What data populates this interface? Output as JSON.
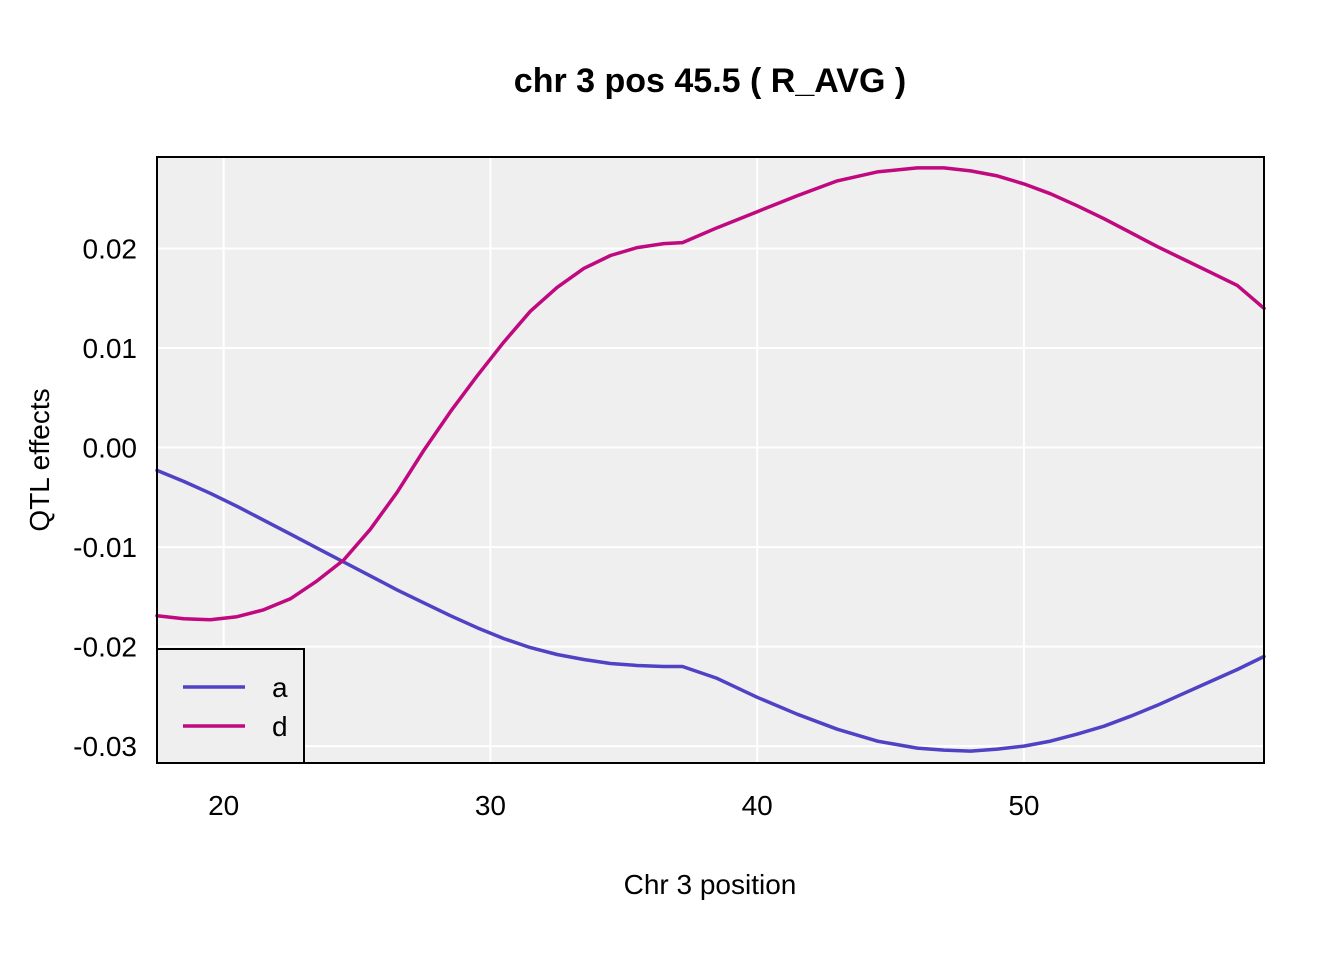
{
  "chart_data": {
    "type": "line",
    "title": "chr 3 pos 45.5 ( R_AVG )",
    "xlabel": "Chr 3 position",
    "ylabel": "QTL effects",
    "xlim": [
      17.5,
      59.0
    ],
    "ylim": [
      -0.0317,
      0.0292
    ],
    "x_ticks": [
      20,
      30,
      40,
      50
    ],
    "x_tick_labels": [
      "20",
      "30",
      "40",
      "50"
    ],
    "y_ticks": [
      -0.03,
      -0.02,
      -0.01,
      0.0,
      0.01,
      0.02
    ],
    "y_tick_labels": [
      "-0.03",
      "-0.02",
      "-0.01",
      "0.00",
      "0.01",
      "0.02"
    ],
    "grid": true,
    "background": "#efefef",
    "legend_position": "bottom-left",
    "series": [
      {
        "name": "a",
        "color": "#4f42c5",
        "x": [
          17.5,
          18.5,
          19.5,
          20.5,
          21.5,
          22.5,
          23.5,
          24.5,
          25.5,
          26.5,
          27.5,
          28.5,
          29.5,
          30.5,
          31.5,
          32.5,
          33.5,
          34.5,
          35.5,
          36.5,
          37.2,
          38.5,
          40.0,
          41.5,
          43.0,
          44.5,
          46.0,
          47.0,
          48.0,
          49.0,
          50.0,
          51.0,
          52.0,
          53.0,
          54.0,
          55.0,
          56.0,
          57.0,
          58.0,
          59.0
        ],
        "y": [
          -0.0023,
          -0.0034,
          -0.0046,
          -0.0059,
          -0.0073,
          -0.0087,
          -0.0101,
          -0.0115,
          -0.0129,
          -0.0143,
          -0.0156,
          -0.0169,
          -0.0181,
          -0.0192,
          -0.0201,
          -0.0208,
          -0.0213,
          -0.0217,
          -0.0219,
          -0.022,
          -0.022,
          -0.0232,
          -0.0251,
          -0.0268,
          -0.0283,
          -0.0295,
          -0.0302,
          -0.0304,
          -0.0305,
          -0.0303,
          -0.03,
          -0.0295,
          -0.0288,
          -0.028,
          -0.027,
          -0.0259,
          -0.0247,
          -0.0235,
          -0.0223,
          -0.021
        ]
      },
      {
        "name": "d",
        "color": "#c0087f",
        "x": [
          17.5,
          18.5,
          19.5,
          20.5,
          21.5,
          22.5,
          23.5,
          24.5,
          25.5,
          26.5,
          27.5,
          28.5,
          29.5,
          30.5,
          31.5,
          32.5,
          33.5,
          34.5,
          35.5,
          36.5,
          37.2,
          38.5,
          40.0,
          41.5,
          43.0,
          44.5,
          46.0,
          47.0,
          48.0,
          49.0,
          50.0,
          51.0,
          52.0,
          53.0,
          54.0,
          55.0,
          56.0,
          57.0,
          58.0,
          59.0
        ],
        "y": [
          -0.0169,
          -0.0172,
          -0.0173,
          -0.017,
          -0.0163,
          -0.0152,
          -0.0134,
          -0.0113,
          -0.0082,
          -0.0045,
          -0.0003,
          0.0036,
          0.0072,
          0.0106,
          0.0137,
          0.0161,
          0.018,
          0.0193,
          0.0201,
          0.0205,
          0.0206,
          0.0221,
          0.0237,
          0.0253,
          0.0268,
          0.0277,
          0.0281,
          0.0281,
          0.0278,
          0.0273,
          0.0265,
          0.0255,
          0.0243,
          0.023,
          0.0216,
          0.0202,
          0.0189,
          0.0176,
          0.0163,
          0.014
        ]
      }
    ]
  }
}
